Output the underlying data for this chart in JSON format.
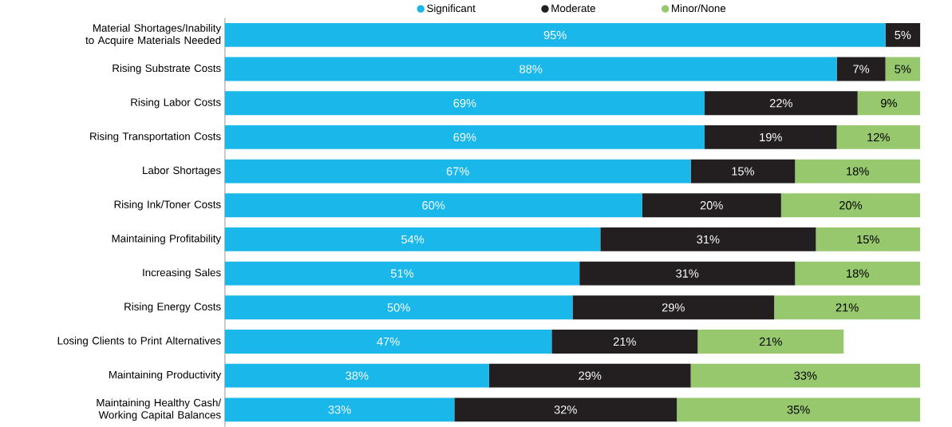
{
  "chart_data": {
    "type": "bar",
    "orientation": "horizontal",
    "stacked": true,
    "legend": "top",
    "xlim": [
      0,
      100
    ],
    "tick_labels": "y",
    "categories": [
      "Material Shortages/Inability to Acquire Materials Needed",
      "Rising Substrate Costs",
      "Rising Labor Costs",
      "Rising Transportation Costs",
      "Labor Shortages",
      "Rising Ink/Toner Costs",
      "Maintaining Profitability",
      "Increasing Sales",
      "Rising Energy Costs",
      "Losing Clients to Print Alternatives",
      "Maintaining Productivity",
      "Maintaining Healthy Cash/ Working Capital Balances"
    ],
    "series": [
      {
        "name": "Significant",
        "color": "#1ab7ea",
        "values": [
          95,
          88,
          69,
          69,
          67,
          60,
          54,
          51,
          50,
          47,
          38,
          33
        ],
        "value_labels": [
          "95%",
          "88%",
          "69%",
          "69%",
          "67%",
          "60%",
          "54%",
          "51%",
          "50%",
          "47%",
          "38%",
          "33%"
        ]
      },
      {
        "name": "Moderate",
        "color": "#231f20",
        "values": [
          5,
          7,
          22,
          19,
          15,
          20,
          31,
          31,
          29,
          21,
          29,
          32
        ],
        "value_labels": [
          "5%",
          "7%",
          "22%",
          "19%",
          "15%",
          "20%",
          "31%",
          "31%",
          "29%",
          "21%",
          "29%",
          "32%"
        ]
      },
      {
        "name": "Minor/None",
        "color": "#97c86e",
        "values": [
          0,
          5,
          9,
          12,
          18,
          20,
          15,
          18,
          21,
          21,
          33,
          35
        ],
        "value_labels": [
          null,
          "5%",
          "9%",
          "12%",
          "18%",
          "20%",
          "15%",
          "18%",
          "21%",
          "21%",
          "33%",
          "35%"
        ]
      }
    ]
  }
}
